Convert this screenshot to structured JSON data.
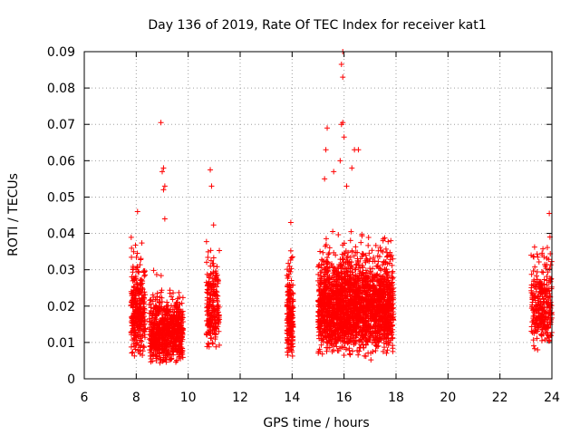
{
  "chart_data": {
    "type": "scatter",
    "title": "Day 136 of 2019, Rate Of TEC Index for receiver kat1",
    "xlabel": "GPS time / hours",
    "ylabel": "ROTI / TECUs",
    "xlim": [
      6,
      24
    ],
    "ylim": [
      0,
      0.09
    ],
    "xticks": [
      "6",
      "8",
      "10",
      "12",
      "14",
      "16",
      "18",
      "20",
      "22",
      "24"
    ],
    "yticks": [
      "0",
      "0.01",
      "0.02",
      "0.03",
      "0.04",
      "0.05",
      "0.06",
      "0.07",
      "0.08",
      "0.09"
    ],
    "grid": true,
    "marker": "+",
    "series": [
      {
        "name": "ROTI",
        "color": "#ff0000",
        "clusters": [
          {
            "x_range": [
              7.8,
              8.35
            ],
            "y_range": [
              0.004,
              0.046
            ],
            "count": 320
          },
          {
            "x_range": [
              8.5,
              9.8
            ],
            "y_range": [
              0.003,
              0.032
            ],
            "count": 700
          },
          {
            "x_range": [
              10.7,
              11.2
            ],
            "y_range": [
              0.006,
              0.045
            ],
            "count": 220
          },
          {
            "x_range": [
              13.8,
              14.05
            ],
            "y_range": [
              0.003,
              0.043
            ],
            "count": 180
          },
          {
            "x_range": [
              15.0,
              17.9
            ],
            "y_range": [
              0.005,
              0.048
            ],
            "count": 2200
          },
          {
            "x_range": [
              23.2,
              24.0
            ],
            "y_range": [
              0.006,
              0.046
            ],
            "count": 300
          }
        ],
        "points": [
          {
            "x": 8.95,
            "y": 0.0705
          },
          {
            "x": 9.05,
            "y": 0.058
          },
          {
            "x": 9.0,
            "y": 0.057
          },
          {
            "x": 9.1,
            "y": 0.053
          },
          {
            "x": 9.05,
            "y": 0.052
          },
          {
            "x": 9.1,
            "y": 0.044
          },
          {
            "x": 10.85,
            "y": 0.0575
          },
          {
            "x": 10.9,
            "y": 0.053
          },
          {
            "x": 15.35,
            "y": 0.069
          },
          {
            "x": 15.95,
            "y": 0.09
          },
          {
            "x": 15.9,
            "y": 0.0865
          },
          {
            "x": 15.95,
            "y": 0.083
          },
          {
            "x": 15.95,
            "y": 0.0705
          },
          {
            "x": 15.9,
            "y": 0.07
          },
          {
            "x": 16.0,
            "y": 0.0665
          },
          {
            "x": 15.85,
            "y": 0.06
          },
          {
            "x": 16.4,
            "y": 0.063
          },
          {
            "x": 16.55,
            "y": 0.063
          },
          {
            "x": 16.3,
            "y": 0.058
          },
          {
            "x": 15.3,
            "y": 0.063
          },
          {
            "x": 15.25,
            "y": 0.055
          },
          {
            "x": 15.6,
            "y": 0.057
          },
          {
            "x": 16.1,
            "y": 0.053
          },
          {
            "x": 23.9,
            "y": 0.0455
          },
          {
            "x": 23.2,
            "y": 0.034
          },
          {
            "x": 8.05,
            "y": 0.046
          },
          {
            "x": 13.95,
            "y": 0.043
          },
          {
            "x": 17.5,
            "y": 0.038
          },
          {
            "x": 17.8,
            "y": 0.038
          }
        ]
      }
    ]
  }
}
